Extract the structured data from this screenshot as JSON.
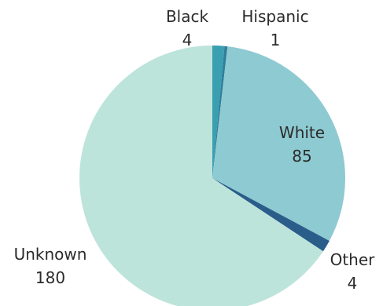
{
  "chart_data": {
    "type": "pie",
    "title": "",
    "start_angle_deg": 0,
    "direction": "clockwise",
    "slices": [
      {
        "label": "Black",
        "value": 4,
        "color": "#3a9fb0"
      },
      {
        "label": "Hispanic",
        "value": 1,
        "color": "#2f7f9a"
      },
      {
        "label": "White",
        "value": 85,
        "color": "#8ecad1"
      },
      {
        "label": "Other",
        "value": 4,
        "color": "#2a5d8a"
      },
      {
        "label": "Unknown",
        "value": 180,
        "color": "#bde4da"
      }
    ],
    "legend": "none",
    "labels_show_value": true
  }
}
